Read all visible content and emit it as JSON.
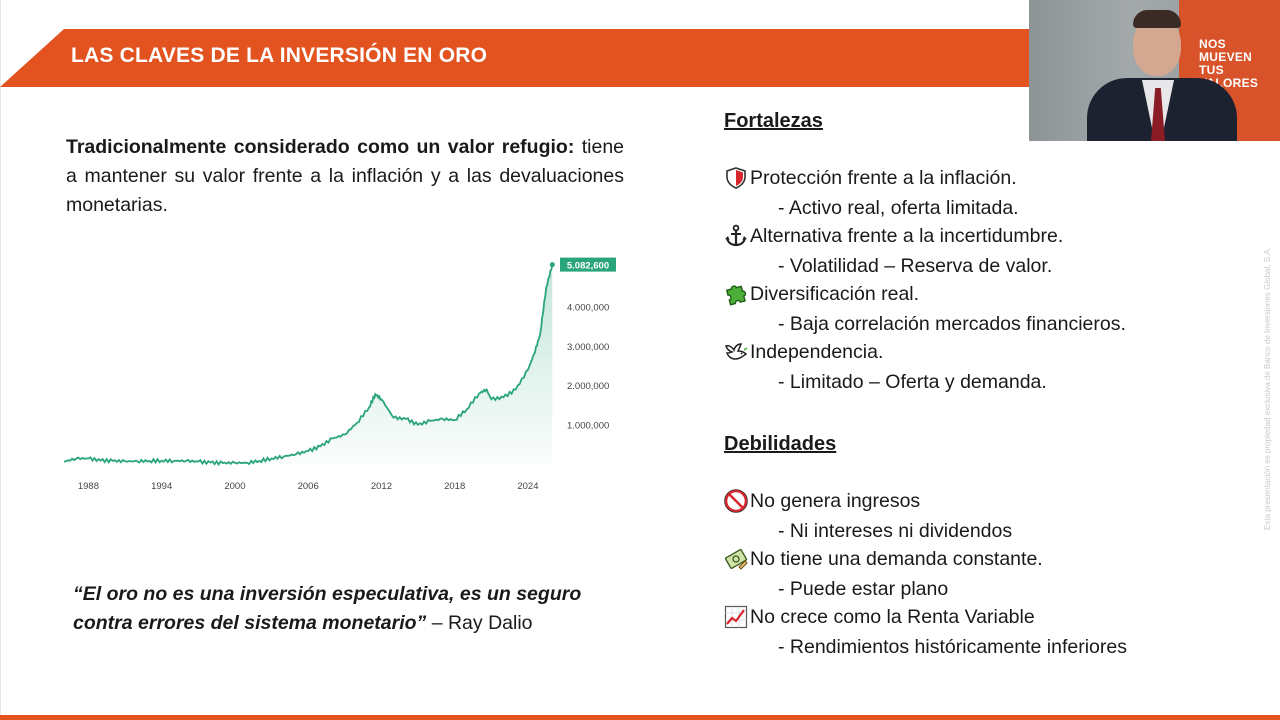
{
  "slide": {
    "title": "LAS CLAVES DE LA INVERSIÓN EN ORO",
    "brand_color": "#e2531f",
    "intro": {
      "bold": "Tradicionalmente considerado como un valor refugio:",
      "normal": " tiene a mantener su valor frente a la inflación y a las devaluaciones monetarias."
    },
    "quote": {
      "text": "“El oro no es una inversión especulativa, es un seguro contra errores del sistema monetario”",
      "author": " – Ray Dalio"
    },
    "side_note": "Esta presentación es propiedad exclusiva de Banco de Inversiones Global, S.A.",
    "strengths": {
      "title": "Fortalezas",
      "items": [
        {
          "icon": "shield-icon",
          "label": "Protección frente a la inflación.",
          "sub": "- Activo real, oferta limitada."
        },
        {
          "icon": "anchor-icon",
          "label": "Alternativa frente a la incertidumbre.",
          "sub": "- Volatilidad – Reserva de valor."
        },
        {
          "icon": "puzzle-icon",
          "label": "Diversificación real.",
          "sub": "- Baja correlación mercados financieros."
        },
        {
          "icon": "dove-icon",
          "label": "Independencia.",
          "sub": "- Limitado – Oferta y demanda."
        }
      ]
    },
    "weaknesses": {
      "title": "Debilidades",
      "items": [
        {
          "icon": "prohibited-icon",
          "label": "No genera ingresos",
          "sub": "- Ni intereses ni dividendos"
        },
        {
          "icon": "money-icon",
          "label": "No tiene una demanda constante.",
          "sub": "- Puede estar plano"
        },
        {
          "icon": "chart-increasing-icon",
          "label": "No crece como la Renta Variable",
          "sub": "- Rendimientos históricamente inferiores"
        }
      ]
    }
  },
  "webcam": {
    "wall_text": [
      "NOS",
      "MUEVEN",
      "TUS",
      "VALORES"
    ]
  },
  "chart_data": {
    "type": "area",
    "title": "",
    "xlabel": "",
    "ylabel": "",
    "x_ticks": [
      "1988",
      "1994",
      "2000",
      "2006",
      "2012",
      "2018",
      "2024"
    ],
    "y_ticks": [
      "1.000,000",
      "2.000,000",
      "3.000,000",
      "4.000,000"
    ],
    "last_value_label": "5.082,600",
    "line_color": "#2aa57a",
    "xlim": [
      1986,
      2026.3
    ],
    "ylim": [
      0,
      5200000
    ],
    "series": [
      {
        "x": [
          1986,
          1987,
          1988,
          1989,
          1990,
          1991,
          1992,
          1993,
          1994,
          1995,
          1996,
          1997,
          1998,
          1999,
          2000,
          2001,
          2002,
          2003,
          2004,
          2005,
          2006,
          2007,
          2008,
          2009,
          2010,
          2011,
          2011.5,
          2012,
          2013,
          2014,
          2015,
          2016,
          2017,
          2018,
          2019,
          2020,
          2020.6,
          2021,
          2022,
          2023,
          2024,
          2024.5,
          2025,
          2025.5,
          2026
        ],
        "y": [
          60000,
          140000,
          140000,
          90000,
          80000,
          70000,
          70000,
          80000,
          85000,
          80000,
          80000,
          60000,
          35000,
          25000,
          30000,
          30000,
          80000,
          140000,
          190000,
          250000,
          330000,
          450000,
          650000,
          750000,
          1050000,
          1450000,
          1780000,
          1650000,
          1180000,
          1150000,
          1000000,
          1100000,
          1150000,
          1120000,
          1400000,
          1800000,
          1900000,
          1650000,
          1700000,
          1900000,
          2400000,
          2800000,
          3300000,
          4500000,
          5082600
        ]
      }
    ]
  }
}
